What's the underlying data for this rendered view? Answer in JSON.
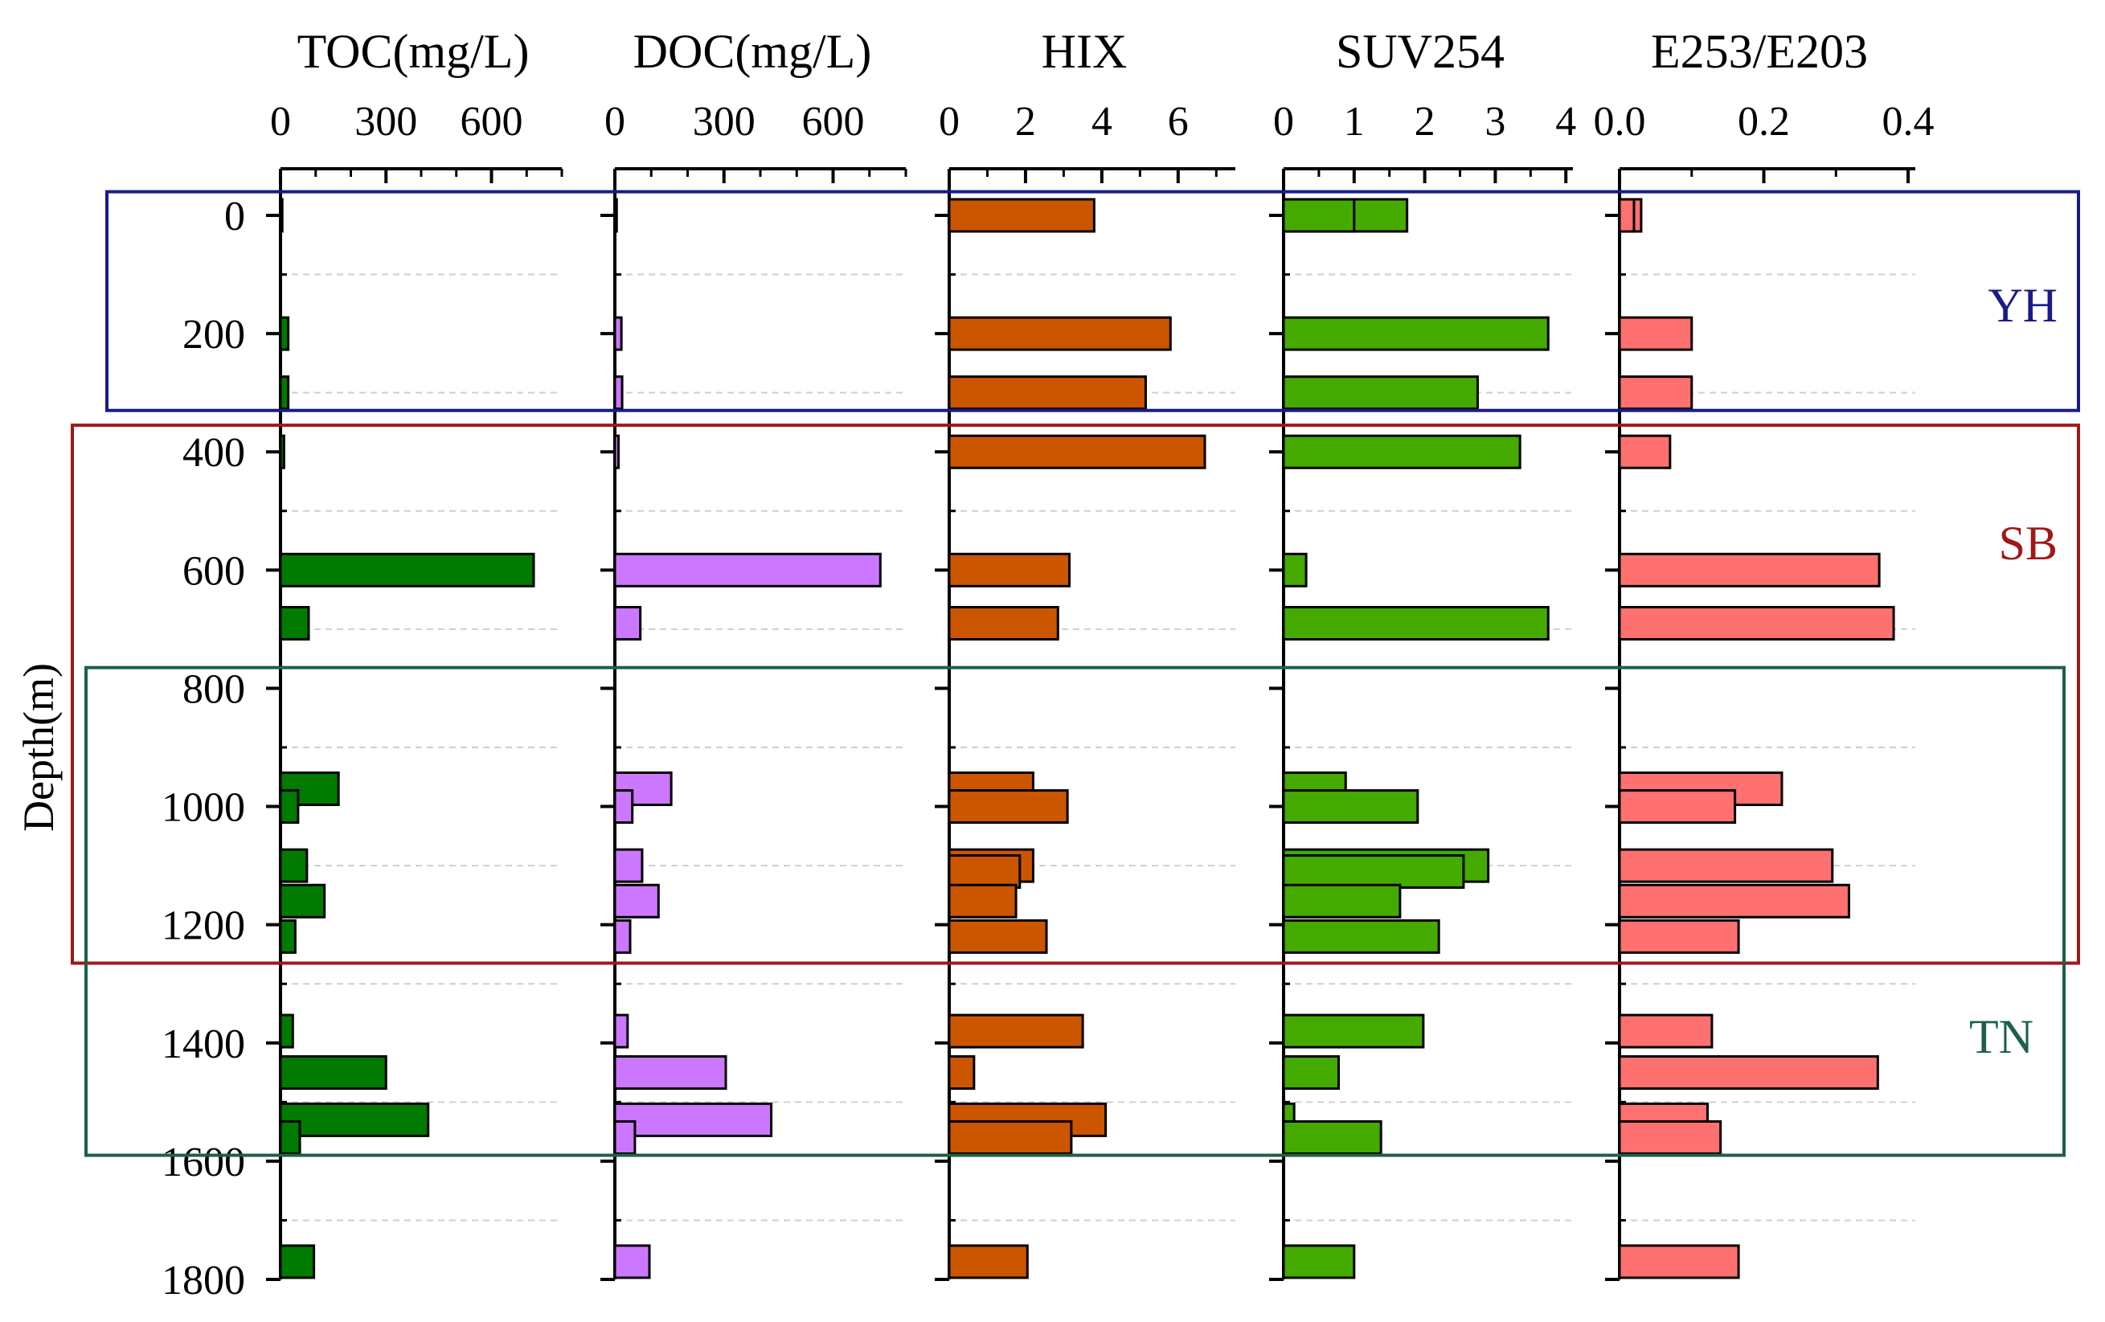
{
  "chart_data": {
    "type": "bar",
    "orientation": "horizontal",
    "y_axis": {
      "label": "Depth(m)",
      "range": [
        -40,
        1800
      ],
      "ticks": [
        0,
        200,
        400,
        600,
        800,
        1000,
        1200,
        1400,
        1600,
        1800
      ],
      "minor_gridlines": [
        100,
        300,
        500,
        700,
        900,
        1100,
        1300,
        1500,
        1700
      ]
    },
    "panels": [
      {
        "id": "toc",
        "title": "TOC(mg/L)",
        "xlim": [
          0,
          800
        ],
        "ticks": [
          0,
          300,
          600
        ],
        "tick_labels": [
          "0",
          "300",
          "600"
        ],
        "minor_ticks": [
          100,
          200,
          400,
          500,
          700,
          800
        ],
        "color": "#007A00",
        "bars": [
          {
            "depth": 0,
            "value": 5
          },
          {
            "depth": 200,
            "value": 22
          },
          {
            "depth": 300,
            "value": 22
          },
          {
            "depth": 400,
            "value": 10
          },
          {
            "depth": 600,
            "value": 720
          },
          {
            "depth": 690,
            "value": 80
          },
          {
            "depth": 970,
            "value": 165
          },
          {
            "depth": 1000,
            "value": 50
          },
          {
            "depth": 1100,
            "value": 75
          },
          {
            "depth": 1160,
            "value": 125
          },
          {
            "depth": 1220,
            "value": 42
          },
          {
            "depth": 1380,
            "value": 35
          },
          {
            "depth": 1450,
            "value": 300
          },
          {
            "depth": 1530,
            "value": 420
          },
          {
            "depth": 1560,
            "value": 55
          },
          {
            "depth": 1770,
            "value": 95
          }
        ]
      },
      {
        "id": "doc",
        "title": "DOC(mg/L)",
        "xlim": [
          0,
          800
        ],
        "ticks": [
          0,
          300,
          600
        ],
        "tick_labels": [
          "0",
          "300",
          "600"
        ],
        "minor_ticks": [
          100,
          200,
          400,
          500,
          700,
          800
        ],
        "color": "#CC77FF",
        "bars": [
          {
            "depth": 0,
            "value": 5
          },
          {
            "depth": 200,
            "value": 18
          },
          {
            "depth": 300,
            "value": 20
          },
          {
            "depth": 400,
            "value": 10
          },
          {
            "depth": 600,
            "value": 730
          },
          {
            "depth": 690,
            "value": 70
          },
          {
            "depth": 970,
            "value": 155
          },
          {
            "depth": 1000,
            "value": 48
          },
          {
            "depth": 1100,
            "value": 75
          },
          {
            "depth": 1160,
            "value": 120
          },
          {
            "depth": 1220,
            "value": 42
          },
          {
            "depth": 1380,
            "value": 35
          },
          {
            "depth": 1450,
            "value": 305
          },
          {
            "depth": 1530,
            "value": 430
          },
          {
            "depth": 1560,
            "value": 55
          },
          {
            "depth": 1770,
            "value": 95
          }
        ]
      },
      {
        "id": "hix",
        "title": "HIX",
        "xlim": [
          0,
          7.5
        ],
        "ticks": [
          0,
          2,
          4,
          6
        ],
        "tick_labels": [
          "0",
          "2",
          "4",
          "6"
        ],
        "minor_ticks": [
          1,
          3,
          5,
          7
        ],
        "color": "#CC5500",
        "bars": [
          {
            "depth": 0,
            "value": 3.8
          },
          {
            "depth": 200,
            "value": 5.8
          },
          {
            "depth": 300,
            "value": 5.15
          },
          {
            "depth": 400,
            "value": 6.7
          },
          {
            "depth": 600,
            "value": 3.15
          },
          {
            "depth": 690,
            "value": 2.85
          },
          {
            "depth": 970,
            "value": 2.2
          },
          {
            "depth": 1000,
            "value": 3.1
          },
          {
            "depth": 1100,
            "value": 2.2
          },
          {
            "depth": 1110,
            "value": 1.85
          },
          {
            "depth": 1160,
            "value": 1.75
          },
          {
            "depth": 1220,
            "value": 2.55
          },
          {
            "depth": 1380,
            "value": 3.5
          },
          {
            "depth": 1450,
            "value": 0.65
          },
          {
            "depth": 1530,
            "value": 4.1
          },
          {
            "depth": 1560,
            "value": 3.2
          },
          {
            "depth": 1770,
            "value": 2.05
          }
        ]
      },
      {
        "id": "suv254",
        "title": "SUV254",
        "xlim": [
          0,
          4.1
        ],
        "ticks": [
          0,
          1,
          2,
          3,
          4
        ],
        "tick_labels": [
          "0",
          "1",
          "2",
          "3",
          "4"
        ],
        "minor_ticks": [
          0.5,
          1.5,
          2.5,
          3.5
        ],
        "color": "#44AA00",
        "bars": [
          {
            "depth": 0,
            "value": 1.75
          },
          {
            "depth": 0.1,
            "value": 1.0
          },
          {
            "depth": 200,
            "value": 3.75
          },
          {
            "depth": 300,
            "value": 2.75
          },
          {
            "depth": 400,
            "value": 3.35
          },
          {
            "depth": 600,
            "value": 0.32
          },
          {
            "depth": 690,
            "value": 3.75
          },
          {
            "depth": 970,
            "value": 0.88
          },
          {
            "depth": 1000,
            "value": 1.9
          },
          {
            "depth": 1100,
            "value": 2.9
          },
          {
            "depth": 1110,
            "value": 2.55
          },
          {
            "depth": 1160,
            "value": 1.65
          },
          {
            "depth": 1220,
            "value": 2.2
          },
          {
            "depth": 1380,
            "value": 1.98
          },
          {
            "depth": 1450,
            "value": 0.78
          },
          {
            "depth": 1530,
            "value": 0.15
          },
          {
            "depth": 1560,
            "value": 1.38
          },
          {
            "depth": 1770,
            "value": 1.0
          }
        ]
      },
      {
        "id": "e253e203",
        "title": "E253/E203",
        "xlim": [
          0,
          0.41
        ],
        "ticks": [
          0.0,
          0.2,
          0.4
        ],
        "tick_labels": [
          "0.0",
          "0.2",
          "0.4"
        ],
        "minor_ticks": [
          0.1,
          0.3
        ],
        "color": "#FF7070",
        "bars": [
          {
            "depth": 0,
            "value": 0.03
          },
          {
            "depth": 0.1,
            "value": 0.02
          },
          {
            "depth": 200,
            "value": 0.1
          },
          {
            "depth": 300,
            "value": 0.1
          },
          {
            "depth": 400,
            "value": 0.07
          },
          {
            "depth": 600,
            "value": 0.36
          },
          {
            "depth": 690,
            "value": 0.38
          },
          {
            "depth": 970,
            "value": 0.225
          },
          {
            "depth": 1000,
            "value": 0.16
          },
          {
            "depth": 1100,
            "value": 0.295
          },
          {
            "depth": 1160,
            "value": 0.318
          },
          {
            "depth": 1220,
            "value": 0.165
          },
          {
            "depth": 1380,
            "value": 0.128
          },
          {
            "depth": 1450,
            "value": 0.358
          },
          {
            "depth": 1530,
            "value": 0.122
          },
          {
            "depth": 1560,
            "value": 0.14
          },
          {
            "depth": 1770,
            "value": 0.165
          }
        ]
      }
    ],
    "regions": [
      {
        "name": "YH",
        "depth_range": [
          -40,
          330
        ],
        "color": "#1A1A8C"
      },
      {
        "name": "SB",
        "depth_range": [
          355,
          1265
        ],
        "color": "#A01818"
      },
      {
        "name": "TN",
        "depth_range": [
          765,
          1590
        ],
        "color": "#1E6046"
      }
    ]
  }
}
